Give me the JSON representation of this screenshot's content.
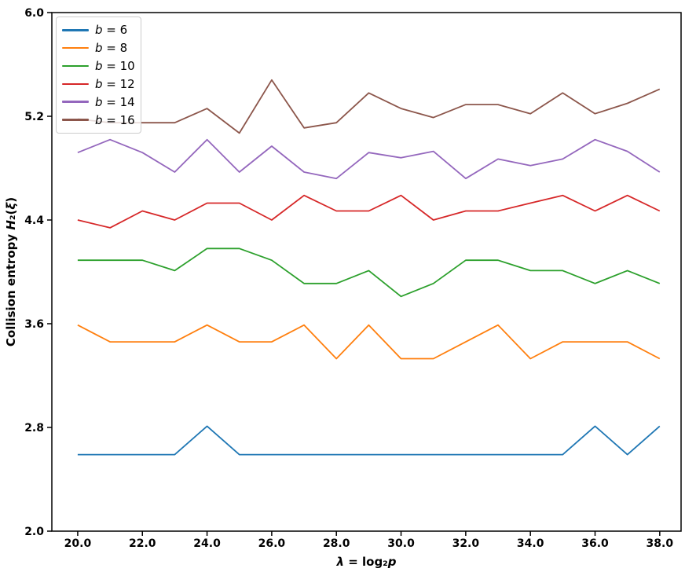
{
  "figure": {
    "background": "#ffffff",
    "axis_color": "#000000"
  },
  "chart_data": {
    "type": "line",
    "title": "",
    "xlabel": "λ = log₂p",
    "ylabel": "Collision entropy H₂(ξ)",
    "xlabel_runs": [
      {
        "t": "λ",
        "italic": true
      },
      {
        "t": " = log₂",
        "italic": false
      },
      {
        "t": "p",
        "italic": true
      }
    ],
    "ylabel_runs": [
      {
        "t": "Collision entropy ",
        "italic": false
      },
      {
        "t": "H",
        "italic": true
      },
      {
        "t": "₂(",
        "italic": false
      },
      {
        "t": "ξ",
        "italic": true
      },
      {
        "t": ")",
        "italic": false
      }
    ],
    "xlim": [
      19.2,
      38.66
    ],
    "ylim": [
      2.0,
      6.0
    ],
    "grid": false,
    "legend_position": "upper left",
    "x_ticks": [
      "20.0",
      "22.0",
      "24.0",
      "26.0",
      "28.0",
      "30.0",
      "32.0",
      "34.0",
      "36.0",
      "38.0"
    ],
    "x_tick_values": [
      20,
      22,
      24,
      26,
      28,
      30,
      32,
      34,
      36,
      38
    ],
    "y_ticks": [
      "6.0",
      "5.2",
      "4.4",
      "3.6",
      "2.8",
      "2.0"
    ],
    "y_tick_values": [
      6.0,
      5.2,
      4.4,
      3.6,
      2.8,
      2.0
    ],
    "x": [
      20,
      21,
      22,
      23,
      24,
      25,
      26,
      27,
      28,
      29,
      30,
      31,
      32,
      33,
      34,
      35,
      36,
      37,
      38
    ],
    "series": [
      {
        "name": "b = 6",
        "key": "b6",
        "color": "#1f77b4",
        "values": [
          2.59,
          2.59,
          2.59,
          2.59,
          2.81,
          2.59,
          2.59,
          2.59,
          2.59,
          2.59,
          2.59,
          2.59,
          2.59,
          2.59,
          2.59,
          2.59,
          2.81,
          2.59,
          2.81
        ]
      },
      {
        "name": "b = 8",
        "key": "b8",
        "color": "#ff7f0e",
        "values": [
          3.59,
          3.46,
          3.46,
          3.46,
          3.59,
          3.46,
          3.46,
          3.59,
          3.33,
          3.59,
          3.33,
          3.33,
          3.46,
          3.59,
          3.33,
          3.46,
          3.46,
          3.46,
          3.33
        ]
      },
      {
        "name": "b = 10",
        "key": "b10",
        "color": "#2ca02c",
        "values": [
          4.09,
          4.09,
          4.09,
          4.01,
          4.18,
          4.18,
          4.09,
          3.91,
          3.91,
          4.01,
          3.81,
          3.91,
          4.09,
          4.09,
          4.01,
          4.01,
          3.91,
          4.01,
          3.91
        ]
      },
      {
        "name": "b = 12",
        "key": "b12",
        "color": "#d62728",
        "values": [
          4.4,
          4.34,
          4.47,
          4.4,
          4.53,
          4.53,
          4.4,
          4.59,
          4.47,
          4.47,
          4.59,
          4.4,
          4.47,
          4.47,
          4.53,
          4.59,
          4.47,
          4.59,
          4.47
        ]
      },
      {
        "name": "b = 14",
        "key": "b14",
        "color": "#9467bd",
        "values": [
          4.92,
          5.02,
          4.92,
          4.77,
          5.02,
          4.77,
          4.97,
          4.77,
          4.72,
          4.92,
          4.88,
          4.93,
          4.72,
          4.87,
          4.82,
          4.87,
          5.02,
          4.93,
          4.77
        ]
      },
      {
        "name": "b = 16",
        "key": "b16",
        "color": "#8c564b",
        "values": [
          5.18,
          5.15,
          5.15,
          5.15,
          5.26,
          5.07,
          5.48,
          5.11,
          5.15,
          5.38,
          5.26,
          5.19,
          5.29,
          5.29,
          5.22,
          5.38,
          5.22,
          5.3,
          5.41
        ]
      }
    ]
  }
}
